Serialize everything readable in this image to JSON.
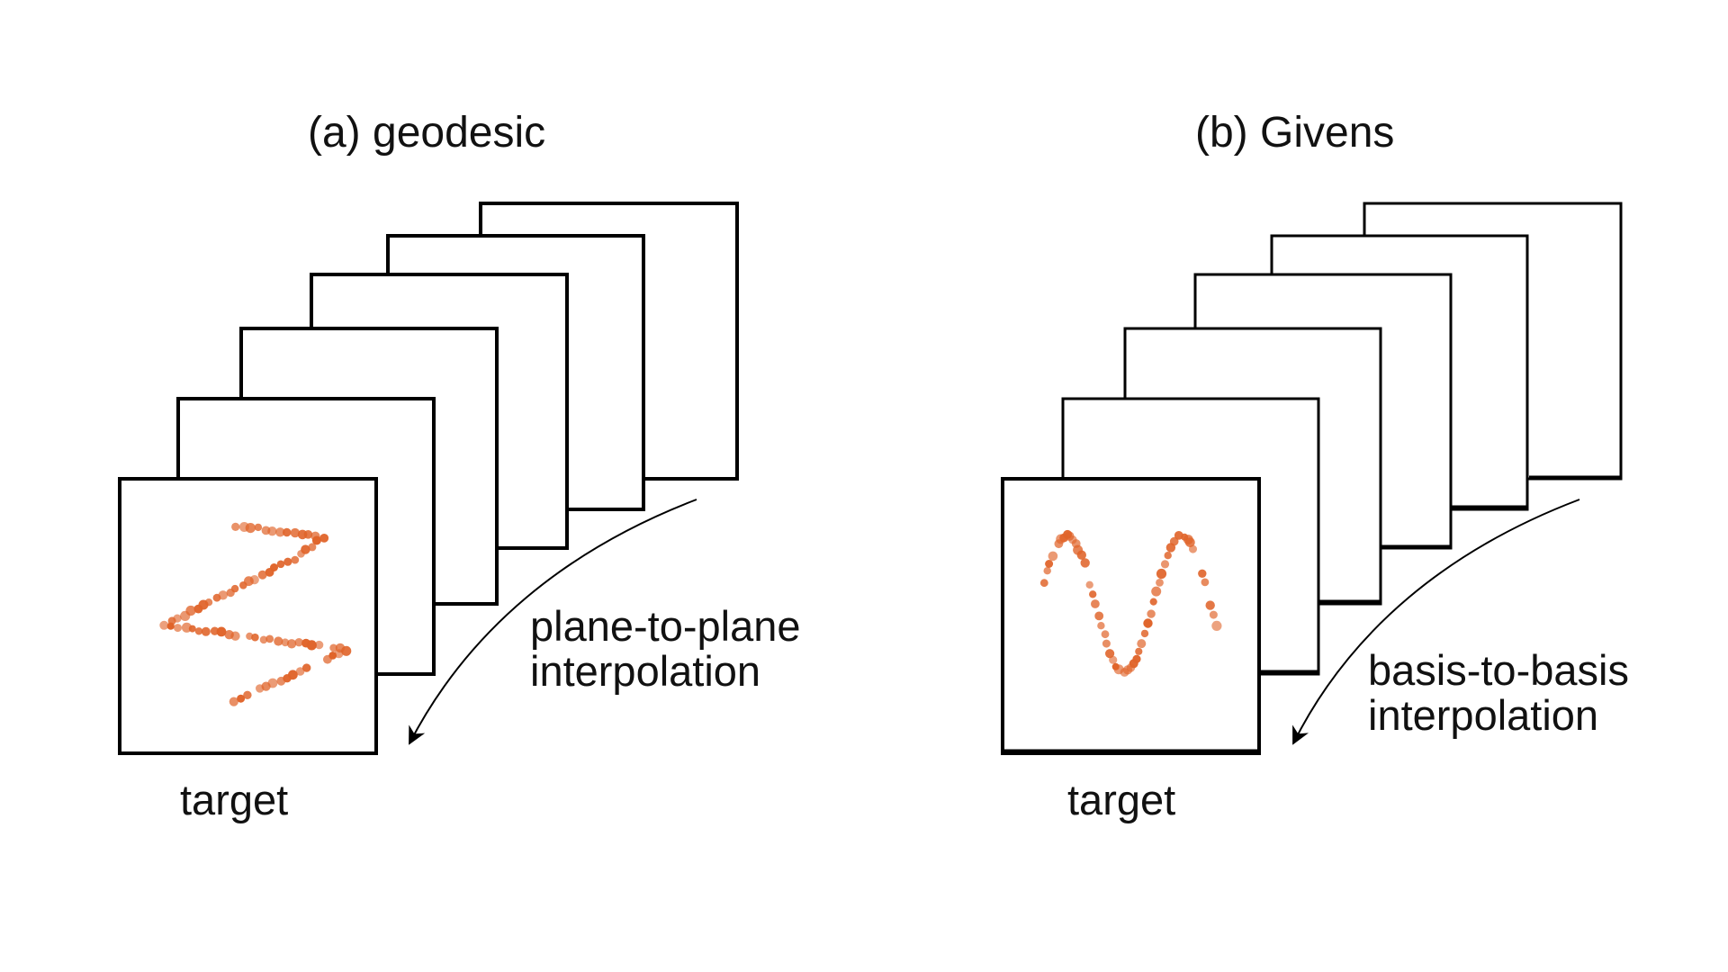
{
  "accent_color": "#E0642A",
  "panels": [
    {
      "title": "(a) geodesic",
      "annotation_lines": [
        "plane-to-plane",
        "interpolation"
      ],
      "target_label": "target",
      "frame_count": 6,
      "scatter_shape": "zigzag"
    },
    {
      "title": "(b) Givens",
      "annotation_lines": [
        "basis-to-basis",
        "interpolation"
      ],
      "target_label": "target",
      "frame_count": 6,
      "scatter_shape": "sine-wave"
    }
  ]
}
